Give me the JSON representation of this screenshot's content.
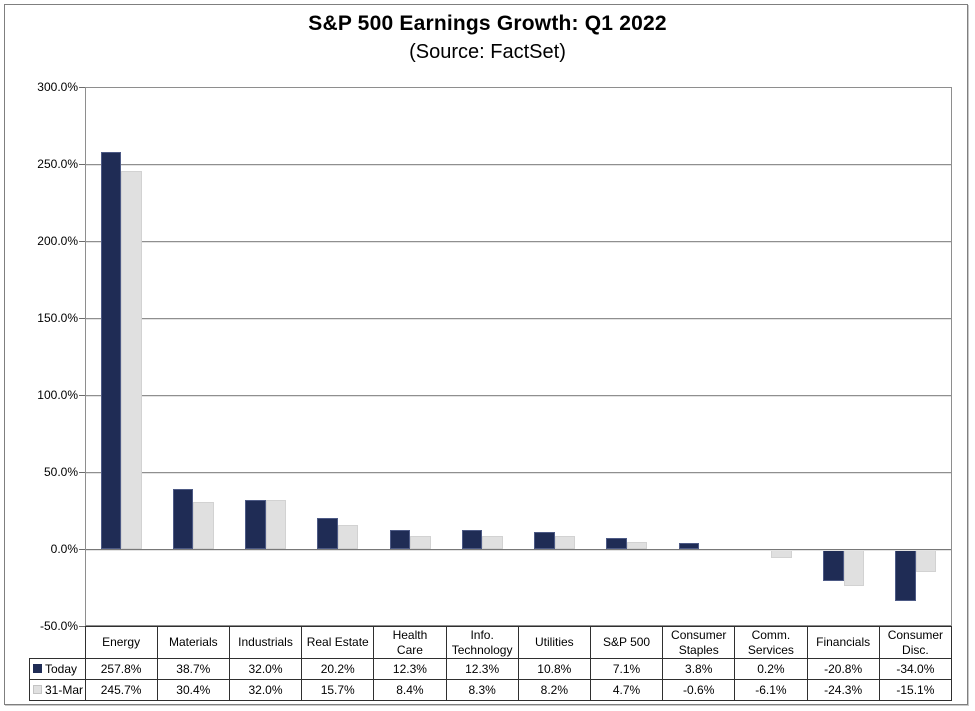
{
  "title": "S&P 500 Earnings Growth: Q1 2022",
  "subtitle": "(Source: FactSet)",
  "colors": {
    "today_bar": "#1f2c55",
    "today_bar_border": "#4d5a85",
    "mar_bar": "#e0e0e0",
    "mar_bar_border": "#d2d2d2",
    "gridline": "#8f8f8f",
    "zero_line": "#787878",
    "tick": "#6b6b6b",
    "plot_border": "#8e8e8e",
    "table_border": "#2f2f2f",
    "text": "#000000"
  },
  "y_axis": {
    "min": -50,
    "max": 300,
    "step": 50,
    "tick_labels": [
      "300.0%",
      "250.0%",
      "200.0%",
      "150.0%",
      "100.0%",
      "50.0%",
      "0.0%",
      "-50.0%"
    ]
  },
  "chart_data": {
    "type": "bar",
    "title": "S&P 500 Earnings Growth: Q1 2022",
    "subtitle": "(Source: FactSet)",
    "categories": [
      "Energy",
      "Materials",
      "Industrials",
      "Real Estate",
      "Health Care",
      "Info. Technology",
      "Utilities",
      "S&P 500",
      "Consumer Staples",
      "Comm. Services",
      "Financials",
      "Consumer Disc."
    ],
    "category_label_lines": [
      [
        "Energy"
      ],
      [
        "Materials"
      ],
      [
        "Industrials"
      ],
      [
        "Real Estate"
      ],
      [
        "Health",
        "Care"
      ],
      [
        "Info.",
        "Technology"
      ],
      [
        "Utilities"
      ],
      [
        "S&P 500"
      ],
      [
        "Consumer",
        "Staples"
      ],
      [
        "Comm.",
        "Services"
      ],
      [
        "Financials"
      ],
      [
        "Consumer",
        "Disc."
      ]
    ],
    "series": [
      {
        "name": "Today",
        "values": [
          257.8,
          38.7,
          32.0,
          20.2,
          12.3,
          12.3,
          10.8,
          7.1,
          3.8,
          0.2,
          -20.8,
          -34.0
        ]
      },
      {
        "name": "31-Mar",
        "values": [
          245.7,
          30.4,
          32.0,
          15.7,
          8.4,
          8.3,
          8.2,
          4.7,
          -0.6,
          -6.1,
          -24.3,
          -15.1
        ]
      }
    ],
    "value_format": "percent_1dp",
    "ylim": [
      -50,
      300
    ],
    "grid": true,
    "legend_position": "table-left"
  }
}
